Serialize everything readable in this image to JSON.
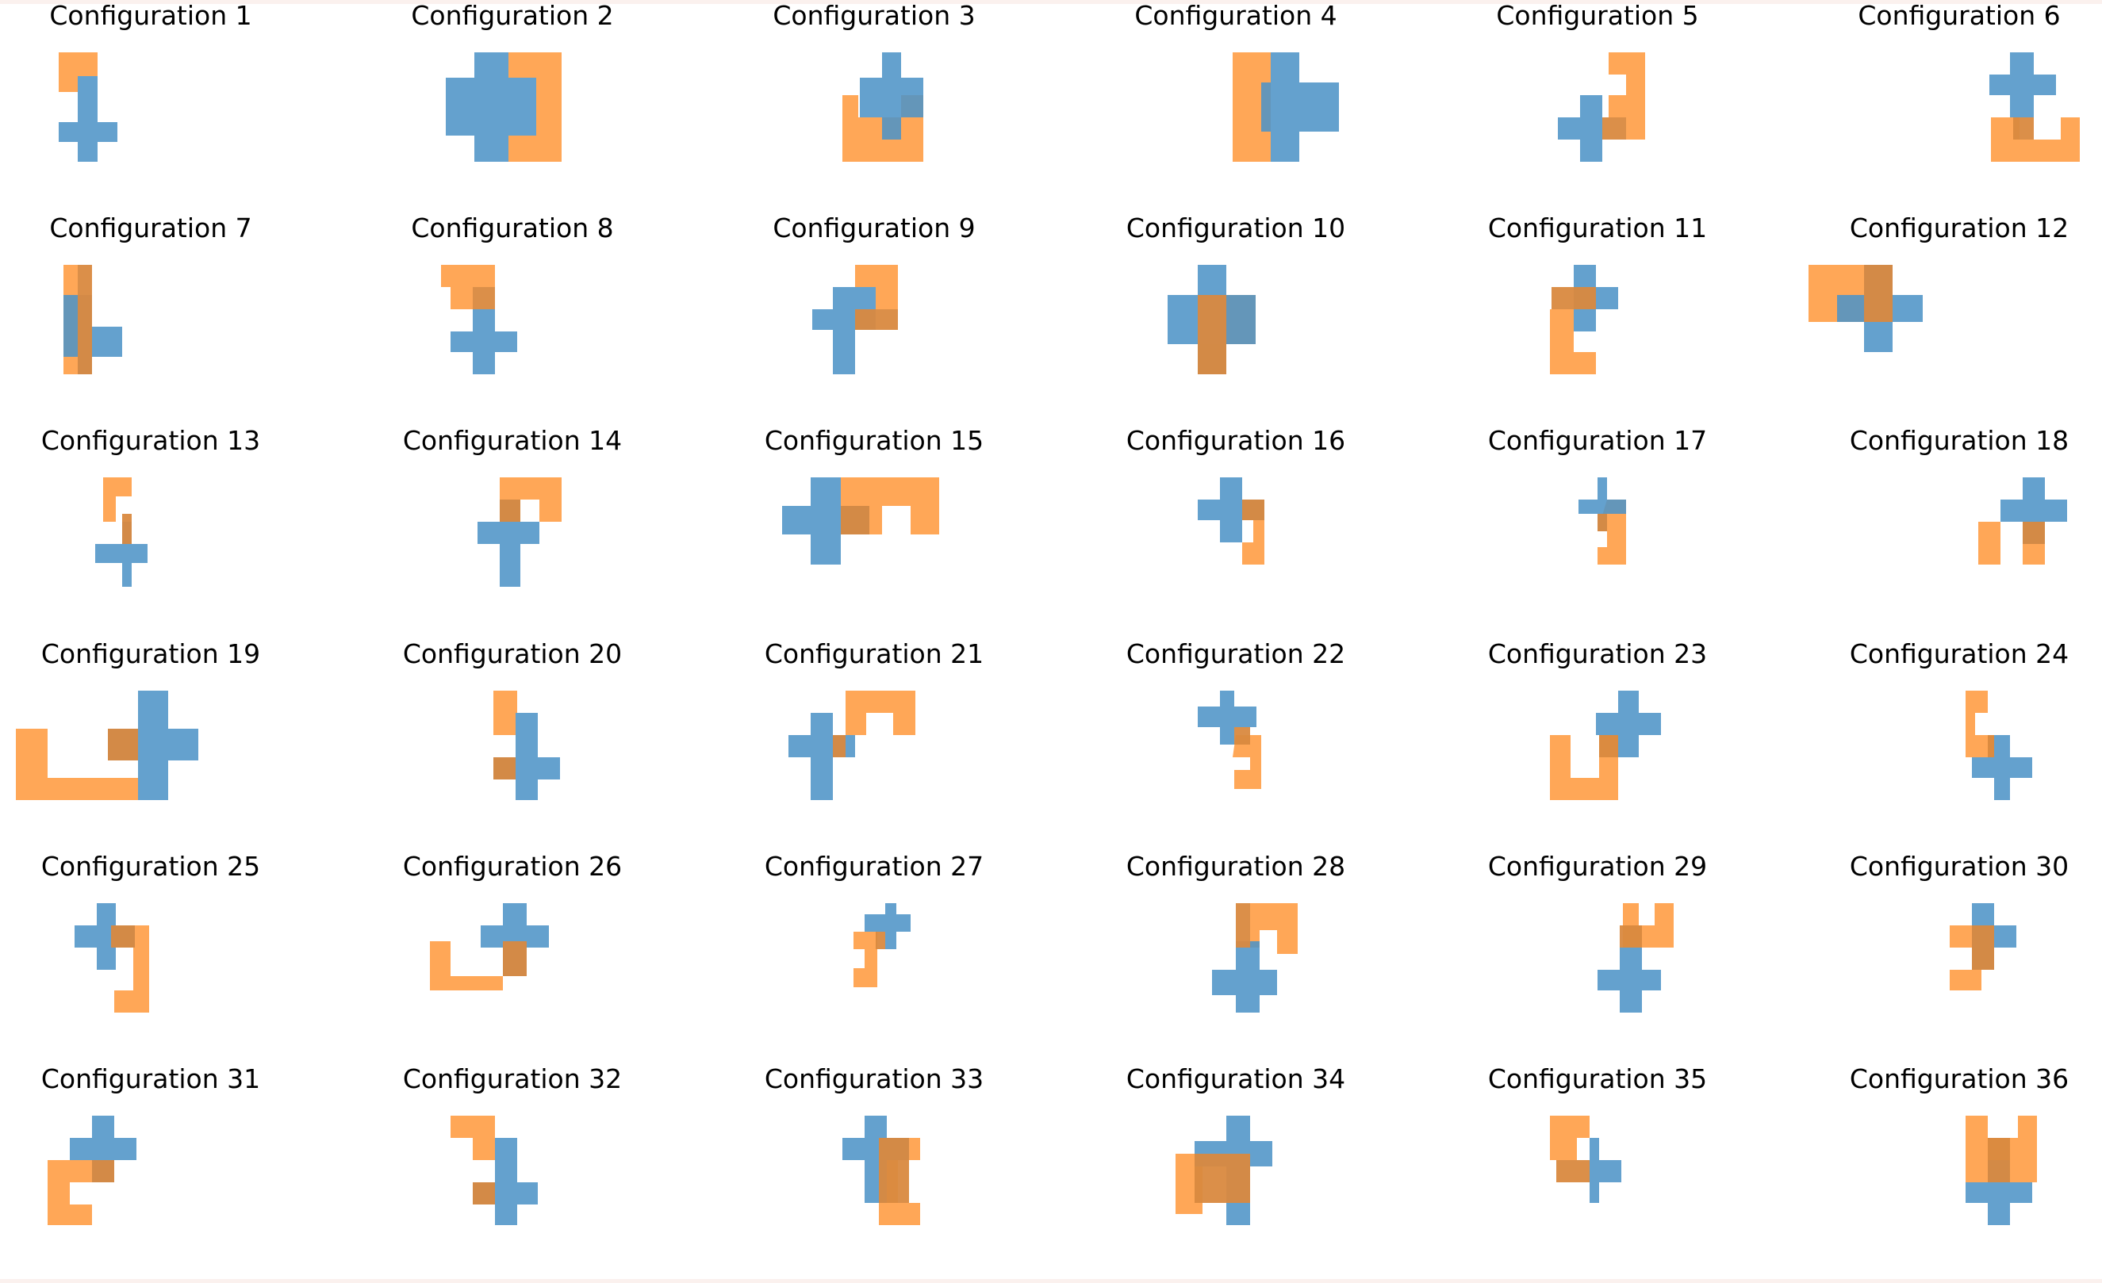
{
  "figure": {
    "title_prefix": "Configuration",
    "colors": {
      "blue": "#4e94c7",
      "orange": "#ff8a1f",
      "overlap": "#d9893f"
    }
  },
  "panels": [
    {
      "title": "Configuration 1"
    },
    {
      "title": "Configuration 2"
    },
    {
      "title": "Configuration 3"
    },
    {
      "title": "Configuration 4"
    },
    {
      "title": "Configuration 5"
    },
    {
      "title": "Configuration 6"
    },
    {
      "title": "Configuration 7"
    },
    {
      "title": "Configuration 8"
    },
    {
      "title": "Configuration 9"
    },
    {
      "title": "Configuration 10"
    },
    {
      "title": "Configuration 11"
    },
    {
      "title": "Configuration 12"
    },
    {
      "title": "Configuration 13"
    },
    {
      "title": "Configuration 14"
    },
    {
      "title": "Configuration 15"
    },
    {
      "title": "Configuration 16"
    },
    {
      "title": "Configuration 17"
    },
    {
      "title": "Configuration 18"
    },
    {
      "title": "Configuration 19"
    },
    {
      "title": "Configuration 20"
    },
    {
      "title": "Configuration 21"
    },
    {
      "title": "Configuration 22"
    },
    {
      "title": "Configuration 23"
    },
    {
      "title": "Configuration 24"
    },
    {
      "title": "Configuration 25"
    },
    {
      "title": "Configuration 26"
    },
    {
      "title": "Configuration 27"
    },
    {
      "title": "Configuration 28"
    },
    {
      "title": "Configuration 29"
    },
    {
      "title": "Configuration 30"
    },
    {
      "title": "Configuration 31"
    },
    {
      "title": "Configuration 32"
    },
    {
      "title": "Configuration 33"
    },
    {
      "title": "Configuration 34"
    },
    {
      "title": "Configuration 35"
    },
    {
      "title": "Configuration 36"
    }
  ]
}
